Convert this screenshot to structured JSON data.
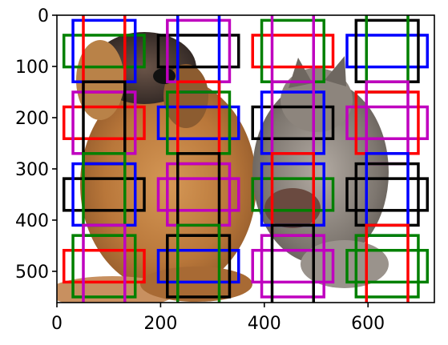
{
  "chart_data": {
    "type": "image-with-anchor-boxes",
    "xlim": [
      0,
      728
    ],
    "ylim": [
      561,
      0
    ],
    "xticks": [
      0,
      200,
      400,
      600
    ],
    "yticks": [
      0,
      100,
      200,
      300,
      400,
      500
    ],
    "image_content": "puppy and kitten photo",
    "box_colors": [
      "#0000ff",
      "#008000",
      "#ff0000",
      "#bf00bf",
      "#000000"
    ],
    "centers": [
      {
        "x": 91,
        "y": 70,
        "order": [
          1,
          0,
          2
        ]
      },
      {
        "x": 273,
        "y": 70,
        "order": [
          4,
          3,
          0
        ]
      },
      {
        "x": 455,
        "y": 70,
        "order": [
          2,
          1,
          3
        ]
      },
      {
        "x": 637,
        "y": 70,
        "order": [
          0,
          4,
          1
        ]
      },
      {
        "x": 91,
        "y": 210,
        "order": [
          2,
          3,
          4
        ]
      },
      {
        "x": 273,
        "y": 210,
        "order": [
          0,
          1,
          2
        ]
      },
      {
        "x": 455,
        "y": 210,
        "order": [
          4,
          0,
          3
        ]
      },
      {
        "x": 637,
        "y": 210,
        "order": [
          3,
          2,
          3
        ]
      },
      {
        "x": 91,
        "y": 350,
        "order": [
          4,
          0,
          1
        ]
      },
      {
        "x": 273,
        "y": 350,
        "order": [
          3,
          3,
          4
        ]
      },
      {
        "x": 455,
        "y": 350,
        "order": [
          1,
          0,
          2
        ]
      },
      {
        "x": 637,
        "y": 350,
        "order": [
          4,
          4,
          0
        ]
      },
      {
        "x": 91,
        "y": 490,
        "order": [
          2,
          1,
          3
        ]
      },
      {
        "x": 273,
        "y": 490,
        "order": [
          0,
          4,
          1
        ]
      },
      {
        "x": 455,
        "y": 490,
        "order": [
          3,
          3,
          4
        ]
      },
      {
        "x": 637,
        "y": 490,
        "order": [
          1,
          1,
          2
        ]
      }
    ],
    "anchor_sizes": {
      "wide": [
        155,
        62
      ],
      "square": [
        120,
        120
      ],
      "tall": [
        80,
        160
      ]
    }
  }
}
